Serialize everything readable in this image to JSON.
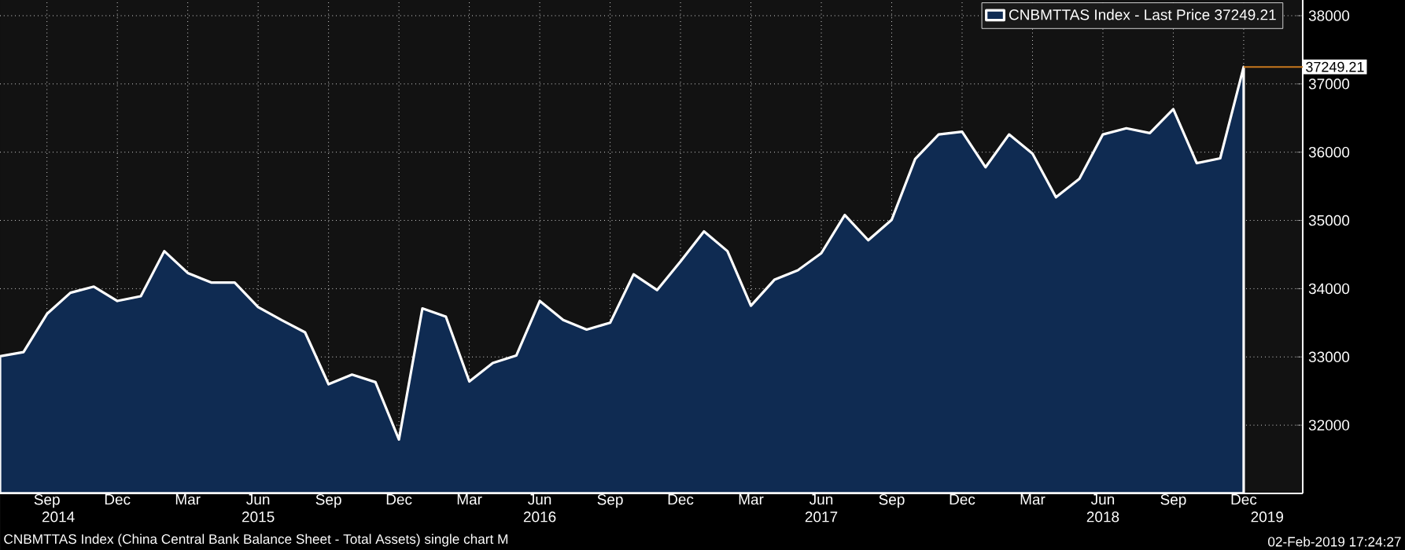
{
  "chart_data": {
    "type": "area",
    "series": [
      {
        "name": "CNBMTTAS Index - Last Price 37249.21",
        "color": "#0f2b52",
        "x": [
          "2014-07",
          "2014-08",
          "2014-09",
          "2014-10",
          "2014-11",
          "2014-12",
          "2015-01",
          "2015-02",
          "2015-03",
          "2015-04",
          "2015-05",
          "2015-06",
          "2015-07",
          "2015-08",
          "2015-09",
          "2015-10",
          "2015-11",
          "2015-12",
          "2016-01",
          "2016-02",
          "2016-03",
          "2016-04",
          "2016-05",
          "2016-06",
          "2016-07",
          "2016-08",
          "2016-09",
          "2016-10",
          "2016-11",
          "2016-12",
          "2017-01",
          "2017-02",
          "2017-03",
          "2017-04",
          "2017-05",
          "2017-06",
          "2017-07",
          "2017-08",
          "2017-09",
          "2017-10",
          "2017-11",
          "2017-12",
          "2018-01",
          "2018-02",
          "2018-03",
          "2018-04",
          "2018-05",
          "2018-06",
          "2018-07",
          "2018-08",
          "2018-09",
          "2018-10",
          "2018-11",
          "2018-12"
        ],
        "values": [
          33010,
          33070,
          33630,
          33940,
          34030,
          33820,
          33890,
          34550,
          34230,
          34090,
          34090,
          33730,
          33540,
          33360,
          32600,
          32740,
          32630,
          31790,
          33710,
          33590,
          32640,
          32910,
          33020,
          33820,
          33540,
          33400,
          33500,
          34210,
          33980,
          34400,
          34840,
          34550,
          33750,
          34130,
          34270,
          34520,
          35080,
          34710,
          35010,
          35900,
          36260,
          36300,
          35780,
          36260,
          35980,
          35340,
          35610,
          36260,
          36350,
          36280,
          36630,
          35840,
          35910,
          37249.21
        ]
      }
    ],
    "xlim": [
      "2014-07",
      "2019-02-17"
    ],
    "xticks": [
      {
        "value": "2014-09",
        "label": "Sep"
      },
      {
        "value": "2014-12",
        "label": "Dec"
      },
      {
        "value": "2015-03",
        "label": "Mar"
      },
      {
        "value": "2015-06",
        "label": "Jun"
      },
      {
        "value": "2015-09",
        "label": "Sep"
      },
      {
        "value": "2015-12",
        "label": "Dec"
      },
      {
        "value": "2016-03",
        "label": "Mar"
      },
      {
        "value": "2016-06",
        "label": "Jun"
      },
      {
        "value": "2016-09",
        "label": "Sep"
      },
      {
        "value": "2016-12",
        "label": "Dec"
      },
      {
        "value": "2017-03",
        "label": "Mar"
      },
      {
        "value": "2017-06",
        "label": "Jun"
      },
      {
        "value": "2017-09",
        "label": "Sep"
      },
      {
        "value": "2017-12",
        "label": "Dec"
      },
      {
        "value": "2018-03",
        "label": "Mar"
      },
      {
        "value": "2018-06",
        "label": "Jun"
      },
      {
        "value": "2018-09",
        "label": "Sep"
      },
      {
        "value": "2018-12",
        "label": "Dec"
      }
    ],
    "x2lim": [
      "2014-07",
      "2019-02-17"
    ],
    "x2ticks": [
      {
        "value": "2014-09-16",
        "label": "2014"
      },
      {
        "value": "2015-06",
        "label": "2015"
      },
      {
        "value": "2016-06",
        "label": "2016"
      },
      {
        "value": "2017-06",
        "label": "2017"
      },
      {
        "value": "2018-06",
        "label": "2018"
      },
      {
        "value": "2019-01",
        "label": "2019"
      }
    ],
    "ylim": [
      31000,
      38230
    ],
    "yticks": [
      32000,
      33000,
      34000,
      35000,
      36000,
      37000,
      38000
    ],
    "ref_lines": [
      {
        "axis": "y",
        "value": 37249.21,
        "label": "37249.21",
        "color": "#c8781e"
      }
    ],
    "grid": true,
    "legend": "top right",
    "annotations": [
      "CNBMTTAS Index (China Central Bank Balance Sheet - Total Assets) single chart  M",
      "02-Feb-2019 17:24:27"
    ]
  }
}
